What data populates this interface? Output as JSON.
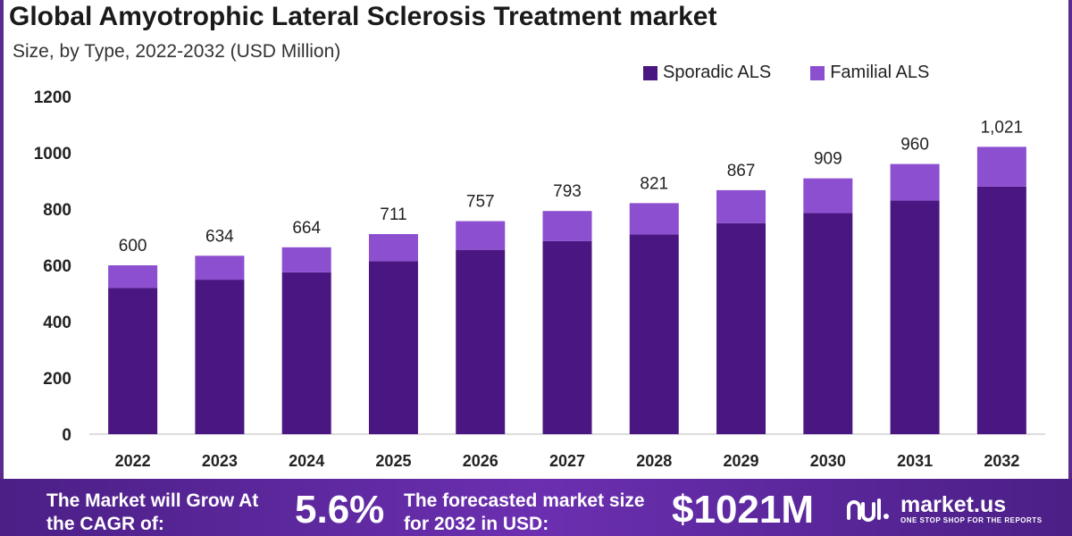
{
  "header": {
    "title": "Global Amyotrophic Lateral Sclerosis Treatment market",
    "subtitle": "Size, by Type, 2022-2032 (USD Million)"
  },
  "legend": {
    "items": [
      {
        "label": "Sporadic ALS",
        "color": "#4a1782"
      },
      {
        "label": "Familial ALS",
        "color": "#8c4fd0"
      }
    ]
  },
  "chart_data": {
    "type": "bar",
    "stacked": true,
    "categories": [
      "2022",
      "2023",
      "2024",
      "2025",
      "2026",
      "2027",
      "2028",
      "2029",
      "2030",
      "2031",
      "2032"
    ],
    "series": [
      {
        "name": "Sporadic ALS",
        "color": "#4a1782",
        "values": [
          520,
          549,
          575,
          615,
          655,
          686,
          710,
          750,
          786,
          830,
          880
        ]
      },
      {
        "name": "Familial ALS",
        "color": "#8c4fd0",
        "values": [
          80,
          85,
          89,
          96,
          102,
          107,
          111,
          117,
          123,
          130,
          141
        ]
      }
    ],
    "totals": [
      600,
      634,
      664,
      711,
      757,
      793,
      821,
      867,
      909,
      960,
      1021
    ],
    "total_labels": [
      "600",
      "634",
      "664",
      "711",
      "757",
      "793",
      "821",
      "867",
      "909",
      "960",
      "1,021"
    ],
    "ylim": [
      0,
      1200
    ],
    "yticks": [
      0,
      200,
      400,
      600,
      800,
      1000,
      1200
    ],
    "ytick_labels": [
      "0",
      "200",
      "400",
      "600",
      "800",
      "1000",
      "1200"
    ],
    "grid": false
  },
  "footer": {
    "text1": "The Market will Grow At the CAGR of:",
    "cagr": "5.6%",
    "text2": "The forecasted market size for 2032 in USD:",
    "size": "$1021M",
    "brand_name": "market.us",
    "brand_tag": "ONE STOP SHOP FOR THE REPORTS"
  }
}
